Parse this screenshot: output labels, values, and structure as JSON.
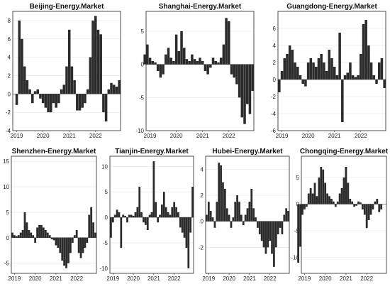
{
  "figure": {
    "bar_color": "#2b2b2b",
    "grid": true,
    "x_tick_labels": [
      "2019",
      "2020",
      "2021",
      "2022"
    ]
  },
  "chart_data": [
    {
      "type": "bar",
      "title": "Beijing-Energy.Market",
      "ylim": [
        -4,
        9
      ],
      "yticks": [
        -4,
        -2,
        0,
        2,
        4,
        6,
        8
      ],
      "x": [
        2019.0,
        2019.1,
        2019.2,
        2019.3,
        2019.4,
        2019.5,
        2019.6,
        2019.7,
        2019.8,
        2019.9,
        2020.0,
        2020.1,
        2020.2,
        2020.3,
        2020.4,
        2020.5,
        2020.6,
        2020.7,
        2020.8,
        2020.9,
        2021.0,
        2021.1,
        2021.2,
        2021.3,
        2021.4,
        2021.5,
        2021.6,
        2021.7,
        2021.8,
        2021.9,
        2022.0,
        2022.1,
        2022.2,
        2022.3,
        2022.4,
        2022.5,
        2022.6,
        2022.7,
        2022.8,
        2022.9
      ],
      "values": [
        -1.2,
        8.0,
        6.0,
        3.0,
        1.5,
        0.5,
        -1.0,
        0.3,
        0.5,
        -0.5,
        -1.0,
        -1.5,
        -2.0,
        -2.0,
        -1.0,
        -1.5,
        -1.0,
        0.5,
        1.0,
        3.0,
        7.0,
        3.0,
        1.5,
        -1.8,
        -1.8,
        -1.5,
        -1.0,
        0.5,
        4.0,
        8.0,
        8.5,
        7.0,
        6.5,
        -2.0,
        -3.0,
        0.5,
        1.2,
        1.0,
        0.8,
        1.5
      ]
    },
    {
      "type": "bar",
      "title": "Shanghai-Energy.Market",
      "ylim": [
        -10,
        8
      ],
      "yticks": [
        -10,
        -5,
        0,
        5
      ],
      "x": [
        2018.8,
        2018.9,
        2019.0,
        2019.1,
        2019.2,
        2019.3,
        2019.4,
        2019.5,
        2019.6,
        2019.7,
        2019.8,
        2019.9,
        2020.0,
        2020.1,
        2020.2,
        2020.3,
        2020.4,
        2020.5,
        2020.6,
        2020.7,
        2020.8,
        2020.9,
        2021.0,
        2021.1,
        2021.2,
        2021.3,
        2021.4,
        2021.5,
        2021.6,
        2021.7,
        2021.8,
        2021.9,
        2022.0,
        2022.1,
        2022.2,
        2022.3,
        2022.4,
        2022.5,
        2022.6,
        2022.7,
        2022.8,
        2022.9
      ],
      "values": [
        1.5,
        3.0,
        1.0,
        0.5,
        0.3,
        -1.0,
        -2.0,
        -1.5,
        1.5,
        2.5,
        1.0,
        0.5,
        4.5,
        2.0,
        5.0,
        2.5,
        0.8,
        0.5,
        1.5,
        0.8,
        0.5,
        1.0,
        0.5,
        -1.0,
        -1.5,
        -0.5,
        1.0,
        0.5,
        0.3,
        1.0,
        3.0,
        7.0,
        6.5,
        -1.5,
        -2.0,
        -3.0,
        -5.0,
        -8.0,
        -9.0,
        -6.0,
        -7.5,
        -4.0
      ]
    },
    {
      "type": "bar",
      "title": "Guangdong-Energy.Market",
      "ylim": [
        -6,
        8
      ],
      "yticks": [
        -6,
        -4,
        -2,
        0,
        2,
        4,
        6
      ],
      "x": [
        2018.9,
        2019.0,
        2019.1,
        2019.2,
        2019.3,
        2019.4,
        2019.5,
        2019.6,
        2019.7,
        2019.8,
        2019.9,
        2020.0,
        2020.1,
        2020.2,
        2020.3,
        2020.4,
        2020.5,
        2020.6,
        2020.7,
        2020.8,
        2020.9,
        2021.0,
        2021.1,
        2021.2,
        2021.3,
        2021.4,
        2021.5,
        2021.6,
        2021.7,
        2021.8,
        2021.9,
        2022.0,
        2022.1,
        2022.2,
        2022.3,
        2022.4,
        2022.5,
        2022.6,
        2022.7,
        2022.8,
        2022.9
      ],
      "values": [
        -1.5,
        1.0,
        2.5,
        3.0,
        4.0,
        3.5,
        2.0,
        1.5,
        0.5,
        -0.5,
        -0.8,
        2.0,
        2.5,
        2.0,
        1.5,
        2.5,
        3.0,
        2.0,
        1.0,
        3.5,
        2.5,
        1.5,
        0.5,
        5.5,
        -5.0,
        0.5,
        0.8,
        2.0,
        0.5,
        0.3,
        0.5,
        3.0,
        6.5,
        7.0,
        4.0,
        2.0,
        0.5,
        -0.5,
        2.0,
        2.5,
        -1.0
      ]
    },
    {
      "type": "bar",
      "title": "Shenzhen-Energy.Market",
      "ylim": [
        -7,
        16
      ],
      "yticks": [
        -5,
        0,
        5,
        10,
        15
      ],
      "x": [
        2018.9,
        2019.0,
        2019.1,
        2019.2,
        2019.3,
        2019.4,
        2019.5,
        2019.6,
        2019.7,
        2019.8,
        2019.9,
        2020.0,
        2020.1,
        2020.2,
        2020.3,
        2020.4,
        2020.5,
        2020.6,
        2020.7,
        2020.8,
        2020.9,
        2021.0,
        2021.1,
        2021.2,
        2021.3,
        2021.4,
        2021.5,
        2021.6,
        2021.7,
        2021.8,
        2021.9,
        2022.0,
        2022.1,
        2022.2,
        2022.3,
        2022.4,
        2022.5,
        2022.6,
        2022.7,
        2022.8,
        2022.9
      ],
      "values": [
        1.0,
        0.5,
        0.3,
        0.5,
        1.0,
        1.5,
        5.0,
        3.0,
        1.5,
        1.0,
        0.5,
        -1.0,
        2.0,
        2.5,
        2.5,
        2.0,
        1.5,
        1.0,
        0.5,
        -0.3,
        -0.5,
        -1.5,
        -2.0,
        -3.0,
        -4.5,
        -5.5,
        -6.0,
        -5.0,
        -3.0,
        -1.0,
        0.5,
        1.5,
        -3.0,
        -4.0,
        -3.0,
        -2.0,
        -1.0,
        4.5,
        6.0,
        3.0,
        1.0
      ]
    },
    {
      "type": "bar",
      "title": "Tianjin-Energy.Market",
      "ylim": [
        -11,
        12
      ],
      "yticks": [
        -10,
        -5,
        0,
        5,
        10
      ],
      "x": [
        2018.9,
        2019.0,
        2019.1,
        2019.2,
        2019.3,
        2019.4,
        2019.5,
        2019.6,
        2019.7,
        2019.8,
        2019.9,
        2020.0,
        2020.1,
        2020.2,
        2020.3,
        2020.4,
        2020.5,
        2020.6,
        2020.7,
        2020.8,
        2020.9,
        2021.0,
        2021.1,
        2021.2,
        2021.3,
        2021.4,
        2021.5,
        2021.6,
        2021.7,
        2021.8,
        2021.9,
        2022.0,
        2022.1,
        2022.2,
        2022.3,
        2022.4,
        2022.5,
        2022.6,
        2022.7,
        2022.8,
        2022.9
      ],
      "values": [
        -4.0,
        -1.0,
        0.5,
        1.5,
        1.0,
        -6.0,
        0.5,
        0.3,
        -1.0,
        0.5,
        0.5,
        0.3,
        1.0,
        2.0,
        6.0,
        1.0,
        -1.0,
        -1.5,
        -2.5,
        0.5,
        1.0,
        11.0,
        3.0,
        -1.0,
        0.5,
        2.5,
        5.0,
        2.0,
        1.0,
        0.5,
        2.0,
        3.0,
        2.0,
        1.0,
        -2.0,
        -3.0,
        -4.0,
        -6.0,
        -10.0,
        -3.0,
        6.0
      ]
    },
    {
      "type": "bar",
      "title": "Hubei-Energy.Market",
      "ylim": [
        -4,
        5
      ],
      "yticks": [
        -2,
        0,
        2,
        4
      ],
      "x": [
        2018.9,
        2019.0,
        2019.1,
        2019.2,
        2019.3,
        2019.4,
        2019.5,
        2019.6,
        2019.7,
        2019.8,
        2019.9,
        2020.0,
        2020.1,
        2020.2,
        2020.3,
        2020.4,
        2020.5,
        2020.6,
        2020.7,
        2020.8,
        2020.9,
        2021.0,
        2021.1,
        2021.2,
        2021.3,
        2021.4,
        2021.5,
        2021.6,
        2021.7,
        2021.8,
        2021.9,
        2022.0,
        2022.1,
        2022.2,
        2022.3,
        2022.4,
        2022.5,
        2022.6,
        2022.7,
        2022.8,
        2022.9
      ],
      "values": [
        0.5,
        1.5,
        0.8,
        0.3,
        -0.5,
        1.5,
        4.5,
        4.3,
        3.0,
        2.5,
        1.0,
        0.5,
        -0.5,
        0.3,
        1.5,
        2.0,
        1.5,
        0.5,
        -0.3,
        0.5,
        1.0,
        1.5,
        2.5,
        1.0,
        0.3,
        -0.5,
        -1.0,
        -1.5,
        -2.0,
        -2.5,
        -2.0,
        -1.5,
        -2.5,
        -3.5,
        -2.0,
        -1.0,
        -0.5,
        -1.0,
        0.5,
        1.0,
        0.8
      ]
    },
    {
      "type": "bar",
      "title": "Chongqing-Energy.Market",
      "ylim": [
        -13,
        9
      ],
      "yticks": [
        -10,
        -5,
        0,
        5
      ],
      "x": [
        2018.7,
        2018.8,
        2018.9,
        2019.0,
        2019.1,
        2019.2,
        2019.3,
        2019.4,
        2019.5,
        2019.6,
        2019.7,
        2019.8,
        2019.9,
        2020.0,
        2020.1,
        2020.2,
        2020.3,
        2020.4,
        2020.5,
        2020.6,
        2020.7,
        2020.8,
        2020.9,
        2021.0,
        2021.1,
        2021.2,
        2021.3,
        2021.4,
        2021.5,
        2021.6,
        2021.7,
        2021.8,
        2021.9,
        2022.0,
        2022.1,
        2022.2,
        2022.3,
        2022.4,
        2022.5,
        2022.6,
        2022.7
      ],
      "values": [
        -11.0,
        -8.0,
        -2.0,
        -1.0,
        -0.5,
        2.0,
        3.0,
        2.0,
        4.0,
        1.5,
        5.0,
        7.0,
        6.5,
        4.0,
        2.0,
        1.5,
        1.0,
        0.5,
        -0.5,
        0.5,
        2.0,
        3.0,
        5.0,
        7.0,
        4.0,
        1.0,
        0.5,
        -0.5,
        -0.3,
        0.5,
        0.3,
        -1.0,
        -2.0,
        -4.5,
        -3.0,
        -2.0,
        -1.0,
        0.5,
        1.0,
        -1.5,
        -1.0
      ]
    }
  ]
}
